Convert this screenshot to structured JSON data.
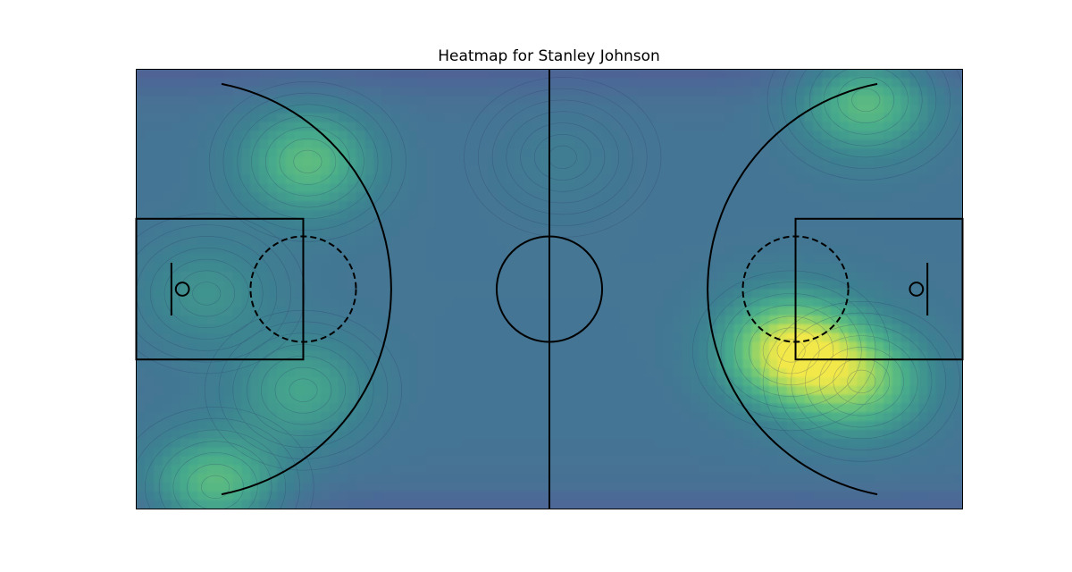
{
  "chart_data": {
    "type": "heatmap",
    "title": "Heatmap for Stanley Johnson",
    "xlabel": "",
    "ylabel": "",
    "xlim": [
      0,
      94
    ],
    "ylim": [
      0,
      50
    ],
    "grid": false,
    "colormap": "viridis",
    "colors": {
      "low": "#5b4a8f",
      "mid": "#3f8a8c",
      "high": "#f3e84a",
      "court_lines": "#000000"
    },
    "hotspots": [
      {
        "x": 19.5,
        "y": 39.5,
        "intensity": 0.55
      },
      {
        "x": 9.0,
        "y": 2.5,
        "intensity": 0.58
      },
      {
        "x": 19.0,
        "y": 13.5,
        "intensity": 0.38
      },
      {
        "x": 83.0,
        "y": 46.5,
        "intensity": 0.58
      },
      {
        "x": 74.5,
        "y": 18.0,
        "intensity": 0.95
      },
      {
        "x": 82.5,
        "y": 14.5,
        "intensity": 0.62
      },
      {
        "x": 8.0,
        "y": 24.5,
        "intensity": 0.25
      },
      {
        "x": 48.5,
        "y": 40.0,
        "intensity": 0.08
      }
    ],
    "court": {
      "length_ft": 94,
      "width_ft": 50,
      "center_circle_radius_ft": 6,
      "three_point_radius_ft": 23.75,
      "free_throw_circle_radius_ft": 6,
      "lane_length_ft": 19,
      "lane_width_ft": 16
    }
  }
}
